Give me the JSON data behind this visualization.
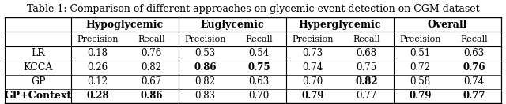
{
  "title": "Table 1: Comparison of different approaches on glycemic event detection on CGM dataset",
  "col_groups": [
    "Hypoglycemic",
    "Euglycemic",
    "Hyperglycemic",
    "Overall"
  ],
  "sub_cols": [
    "Precision",
    "Recall"
  ],
  "row_labels": [
    "LR",
    "KCCA",
    "GP",
    "GP+Context"
  ],
  "row_labels_bold": [
    false,
    false,
    false,
    true
  ],
  "data": [
    [
      "0.18",
      "0.76",
      "0.53",
      "0.54",
      "0.73",
      "0.68",
      "0.51",
      "0.63"
    ],
    [
      "0.26",
      "0.82",
      "0.86",
      "0.75",
      "0.74",
      "0.75",
      "0.72",
      "0.76"
    ],
    [
      "0.12",
      "0.67",
      "0.82",
      "0.63",
      "0.70",
      "0.82",
      "0.58",
      "0.74"
    ],
    [
      "0.28",
      "0.86",
      "0.83",
      "0.70",
      "0.79",
      "0.77",
      "0.79",
      "0.77"
    ]
  ],
  "bold_cells": [
    [],
    [
      [
        1,
        2
      ],
      [
        1,
        3
      ],
      [
        1,
        7
      ]
    ],
    [
      [
        2,
        5
      ]
    ],
    [
      [
        3,
        0
      ],
      [
        3,
        1
      ],
      [
        3,
        4
      ],
      [
        3,
        6
      ],
      [
        3,
        7
      ]
    ]
  ],
  "bold_row_indices": [
    3
  ],
  "background_color": "#ffffff",
  "font_size": 9
}
